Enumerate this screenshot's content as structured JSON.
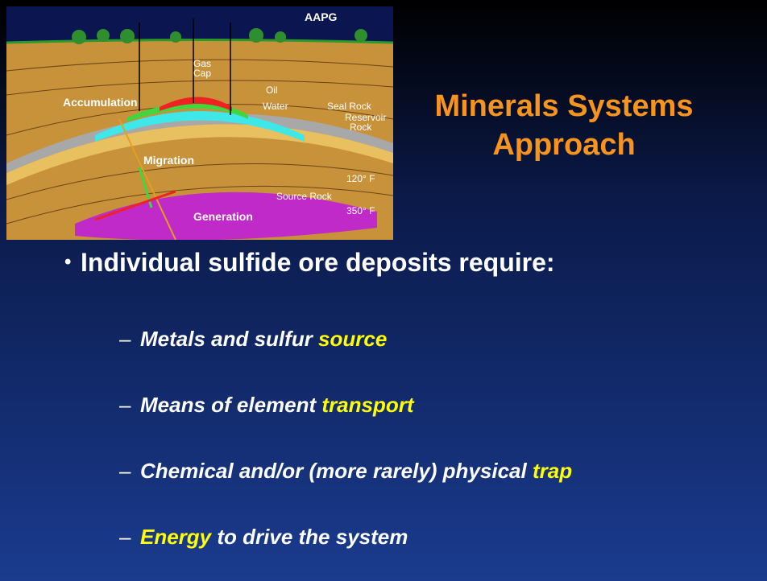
{
  "diagram": {
    "credit": "AAPG",
    "labels": [
      "Gas",
      "Cap",
      "Oil",
      "Water",
      "Seal Rock",
      "Reservoir",
      "Rock",
      "Accumulation",
      "Migration",
      "120° F",
      "Source Rock",
      "350° F",
      "Generation"
    ]
  },
  "title": "Minerals Systems Approach",
  "bullet": "Individual sulfide ore deposits require:",
  "items": [
    {
      "parts": [
        {
          "text": "Metals and sulfur ",
          "highlight": false
        },
        {
          "text": "source",
          "highlight": true
        }
      ]
    },
    {
      "parts": [
        {
          "text": "Means of element ",
          "highlight": false
        },
        {
          "text": "transport",
          "highlight": true
        }
      ]
    },
    {
      "parts": [
        {
          "text": "Chemical and/or (more rarely) physical ",
          "highlight": false
        },
        {
          "text": "trap",
          "highlight": true
        }
      ]
    },
    {
      "parts": [
        {
          "text": "Energy",
          "highlight": true
        },
        {
          "text": " to drive the system",
          "highlight": false
        }
      ]
    }
  ]
}
